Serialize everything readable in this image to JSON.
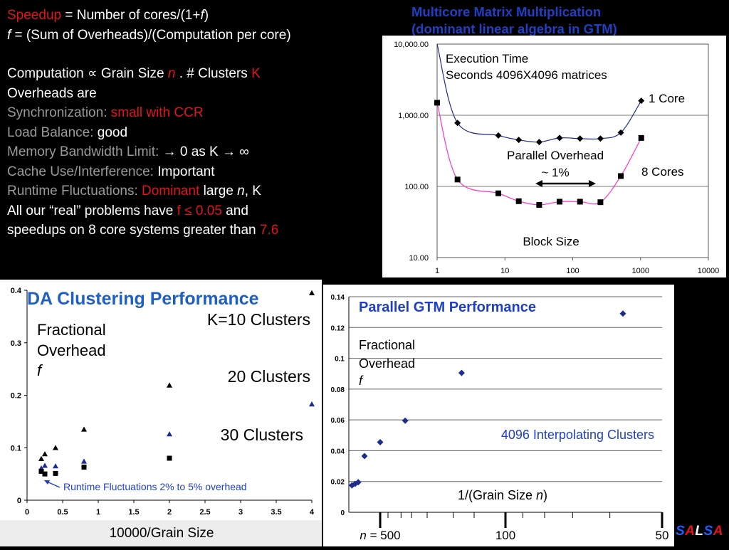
{
  "text_panel": {
    "line1": {
      "a": "Speedup",
      "b": " = Number of cores/(1+",
      "c": "f",
      "d": ")"
    },
    "line2": {
      "a": "f",
      "b": " = (Sum of Overheads)/(Computation per core)"
    },
    "line3": {
      "a": "Computation ",
      "sym": "∝",
      "b": " Grain Size ",
      "n": "n",
      "c": " . # Clusters ",
      "k": "K"
    },
    "line4": "Overheads are",
    "line5": {
      "label": "Synchronization: ",
      "value": "small with CCR"
    },
    "line6": {
      "label": "Load Balance: ",
      "value": "good"
    },
    "line7": {
      "label": "Memory Bandwidth Limit: ",
      "value": "→ 0 as K → ∞"
    },
    "line8": {
      "label": "Cache Use/Interference: ",
      "value": "Important"
    },
    "line9": {
      "label": "Runtime Fluctuations: ",
      "red": "Dominant",
      "a": " large ",
      "n": "n",
      "b": ", K"
    },
    "line10": {
      "a": "All our “real” problems have ",
      "red": "f ≤ 0.05",
      "b": " and"
    },
    "line11": {
      "a": "speedups on 8 core systems greater than ",
      "red": "7.6"
    }
  },
  "chart_data": [
    {
      "type": "line",
      "title": "Multicore Matrix Multiplication (dominant linear algebra in GTM)",
      "title_lines": [
        "Multicore Matrix Multiplication",
        "(dominant linear algebra in GTM)"
      ],
      "x_scale": "log",
      "y_scale": "log",
      "xlim": [
        1,
        10000
      ],
      "ylim": [
        10,
        10000
      ],
      "x_ticks": [
        "1",
        "10",
        "100",
        "1000",
        "10000"
      ],
      "y_ticks": [
        "10.00",
        "100.00",
        "1,000.00",
        "10,000.00"
      ],
      "xlabel": "Block Size",
      "annotations": [
        "Execution Time",
        "Seconds 4096X4096 matrices",
        "Parallel Overhead",
        "~ 1%"
      ],
      "grid": true,
      "series": [
        {
          "name": "1 Core",
          "marker": "diamond",
          "line_color": "#1f2a8a",
          "x": [
            1,
            2,
            8,
            16,
            32,
            64,
            128,
            256,
            512,
            1024
          ],
          "y": [
            10000,
            780,
            520,
            450,
            420,
            480,
            470,
            470,
            570,
            1600
          ]
        },
        {
          "name": "8 Cores",
          "marker": "square",
          "line_color": "#ff33cc",
          "x": [
            1,
            2,
            8,
            16,
            32,
            64,
            128,
            256,
            512,
            1024
          ],
          "y": [
            1500,
            125,
            80,
            62,
            55,
            61,
            61,
            60,
            140,
            480
          ]
        }
      ]
    },
    {
      "type": "scatter",
      "title": "DA Clustering Performance",
      "xlabel": "10000/Grain Size",
      "ylabel_lines": [
        "Fractional",
        "Overhead",
        "f"
      ],
      "xlim": [
        0,
        4
      ],
      "ylim": [
        0,
        0.4
      ],
      "x_ticks": [
        "0",
        "0.5",
        "1",
        "1.5",
        "2",
        "2.5",
        "3",
        "3.5",
        "4"
      ],
      "y_ticks": [
        "0",
        "0.1",
        "0.2",
        "0.3",
        "0.4"
      ],
      "annotations": [
        "Runtime Fluctuations 2% to 5% overhead"
      ],
      "series": [
        {
          "name": "K=10 Clusters",
          "marker": "triangle",
          "color": "#000000",
          "x": [
            0.2,
            0.25,
            0.4,
            0.8,
            2,
            4
          ],
          "y": [
            0.079,
            0.088,
            0.1,
            0.135,
            0.219,
            0.395
          ]
        },
        {
          "name": "20 Clusters",
          "marker": "triangle",
          "color": "#1c2e8c",
          "x": [
            0.2,
            0.25,
            0.4,
            0.8,
            2,
            4
          ],
          "y": [
            0.061,
            0.066,
            0.065,
            0.074,
            0.126,
            0.183
          ]
        },
        {
          "name": "30 Clusters",
          "marker": "square",
          "color": "#000000",
          "x": [
            0.2,
            0.25,
            0.4,
            0.8,
            2
          ],
          "y": [
            0.055,
            0.05,
            0.051,
            0.063,
            0.08
          ]
        }
      ]
    },
    {
      "type": "scatter",
      "title": "Parallel GTM Performance",
      "xlabel": "1/(Grain Size n)",
      "xlabel_parts": {
        "a": "1/(Grain Size ",
        "n": "n",
        "b": ")"
      },
      "ylabel_lines": [
        "Fractional",
        "Overhead",
        "f"
      ],
      "ylim": [
        0,
        0.14
      ],
      "y_ticks": [
        "0",
        "0.02",
        "0.04",
        "0.06",
        "0.08",
        "0.1",
        "0.12",
        "0.14"
      ],
      "x_tick_labels": [
        {
          "label_n": "n",
          "label": " = 500",
          "inv_n": 0.002
        },
        {
          "label": "100",
          "inv_n": 0.01
        },
        {
          "label": "50",
          "inv_n": 0.02
        }
      ],
      "series": [
        {
          "name": "4096 Interpolating Clusters",
          "marker": "diamond",
          "color": "#1c2e8c",
          "x": [
            0.0002,
            0.0004,
            0.0006,
            0.001,
            0.002,
            0.0036,
            0.0072,
            0.0175
          ],
          "y": [
            0.0175,
            0.0185,
            0.0195,
            0.0365,
            0.0455,
            0.0595,
            0.0905,
            0.129
          ]
        }
      ]
    }
  ],
  "logo": {
    "letters": [
      "S",
      "A",
      "L",
      "S",
      "A"
    ],
    "colors": [
      "#1f5fff",
      "#e0151b",
      "#ffffff",
      "#1f5fff",
      "#e0151b"
    ]
  }
}
